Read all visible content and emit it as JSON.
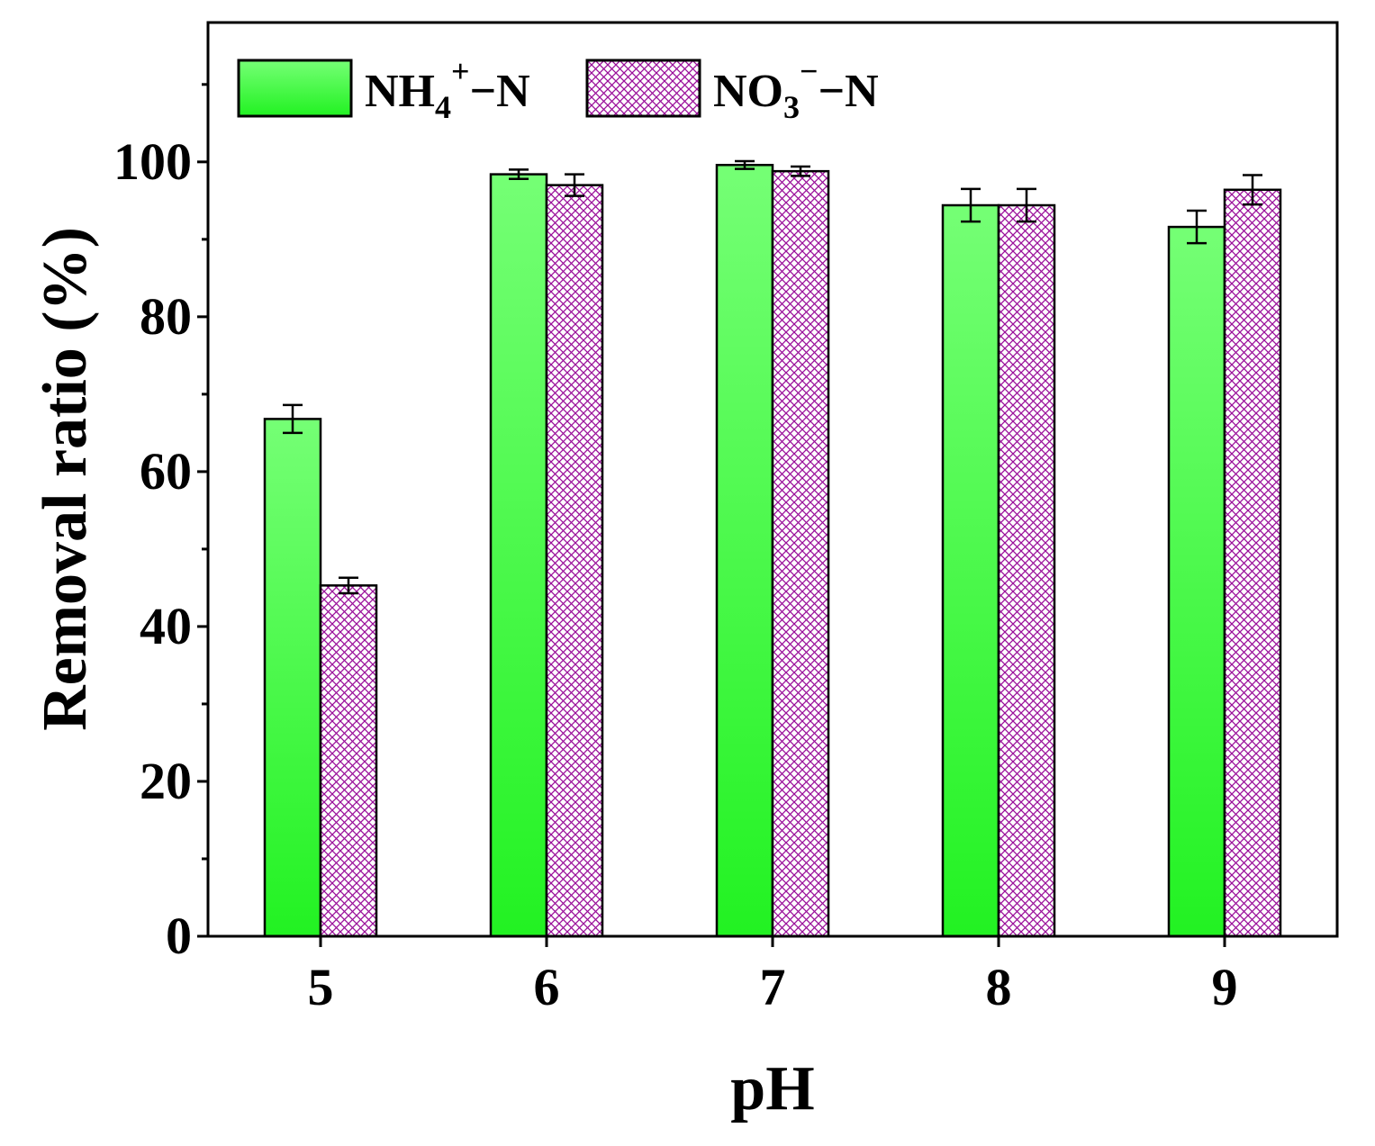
{
  "chart_data": {
    "type": "bar",
    "title": "",
    "xlabel": "pH",
    "ylabel": "Removal ratio (%)",
    "categories": [
      "5",
      "6",
      "7",
      "8",
      "9"
    ],
    "ylim": [
      0,
      118
    ],
    "yticks": [
      0,
      20,
      40,
      60,
      80,
      100
    ],
    "yticks_minor": [
      10,
      30,
      50,
      70,
      90,
      110
    ],
    "grid": false,
    "legend_position": "top-left",
    "series": [
      {
        "name": "NH4+-N",
        "label_parts": [
          "NH",
          "4",
          "+",
          "−N"
        ],
        "values": [
          66.8,
          98.4,
          99.6,
          94.4,
          91.6
        ],
        "errors": [
          1.8,
          0.6,
          0.5,
          2.1,
          2.1
        ],
        "fill": "gradient-green",
        "pattern": "solid"
      },
      {
        "name": "NO3--N",
        "label_parts": [
          "NO",
          "3",
          "−",
          "−N"
        ],
        "values": [
          45.3,
          97.0,
          98.8,
          94.4,
          96.4
        ],
        "errors": [
          1.0,
          1.4,
          0.6,
          2.1,
          1.9
        ],
        "fill": "#ffffff",
        "pattern": "crosshatch"
      }
    ],
    "colors": {
      "green_light": "#75ff75",
      "green_dark": "#22f222",
      "hatch": "#9a0f9a",
      "axis": "#000000"
    }
  }
}
